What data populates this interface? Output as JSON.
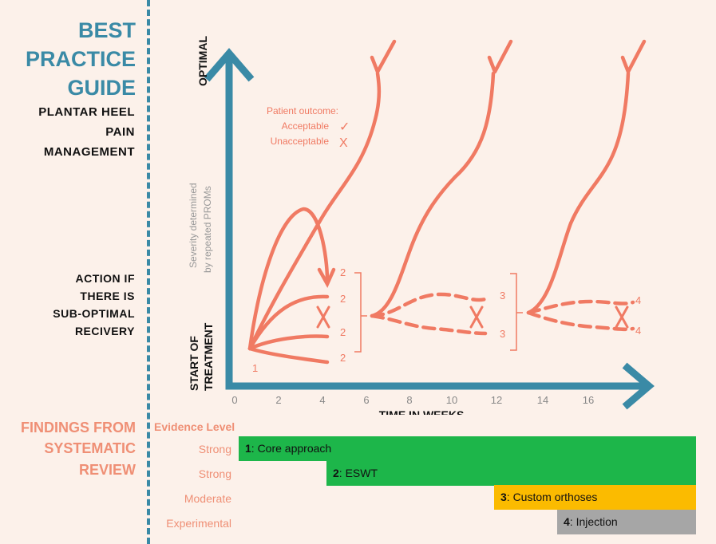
{
  "guide": {
    "title_lines": [
      "BEST",
      "PRACTICE",
      "GUIDE"
    ],
    "subtitle_lines": [
      "PLANTAR HEEL",
      "PAIN",
      "MANAGEMENT"
    ],
    "action_lines": [
      "ACTION IF",
      "THERE IS",
      "SUB-OPTIMAL",
      "RECIVERY"
    ],
    "findings_lines": [
      "FINDINGS FROM",
      "SYSTEMATIC",
      "REVIEW"
    ]
  },
  "diagram": {
    "y_top_label": "OPTIMAL",
    "y_bottom_label_lines": [
      "START OF",
      "TREATMENT"
    ],
    "y_axis_title_lines": [
      "Severity determined",
      "by repeated PROMs"
    ],
    "x_axis_title": "TIME IN WEEKS",
    "x_ticks": [
      "0",
      "2",
      "4",
      "6",
      "8",
      "10",
      "12",
      "14",
      "16"
    ],
    "legend": {
      "title": "Patient outcome:",
      "acceptable": "Acceptable",
      "unacceptable": "Unacceptable",
      "check_symbol": "✓",
      "cross_symbol": "X"
    },
    "start_marker": "1",
    "stage2_markers": [
      "2",
      "2",
      "2",
      "2"
    ],
    "stage3_markers": [
      "3",
      "3"
    ],
    "stage4_markers": [
      "4",
      "4"
    ],
    "line_color": "#f07a63",
    "axis_color": "#3a8aa6"
  },
  "evidence": {
    "header": "Evidence Level",
    "rows": [
      {
        "level": "Strong",
        "num": "1",
        "label": ": Core approach",
        "color": "#1db64a"
      },
      {
        "level": "Strong",
        "num": "2",
        "label": ": ESWT",
        "color": "#1db64a"
      },
      {
        "level": "Moderate",
        "num": "3",
        "label": ": Custom orthoses",
        "color": "#fbbb00"
      },
      {
        "level": "Experimental",
        "num": "4",
        "label": ": Injection",
        "color": "#a6a6a6"
      }
    ]
  }
}
